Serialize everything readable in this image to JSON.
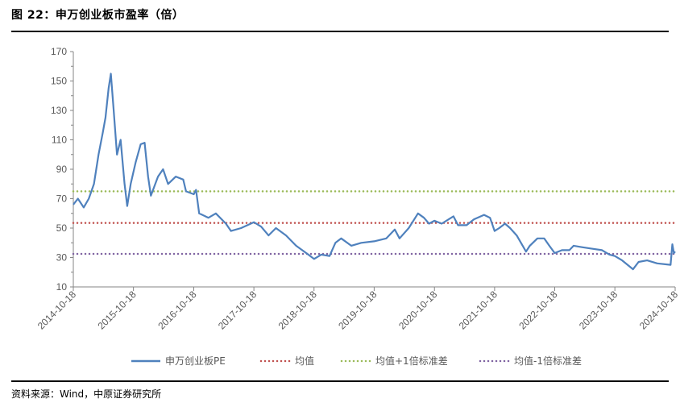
{
  "figure": {
    "title": "图 22：申万创业板市盈率（倍）",
    "source": "资料来源：Wind，中原证券研究所"
  },
  "chart_data": {
    "type": "line",
    "title": "",
    "xlabel": "",
    "ylabel": "",
    "ylim": [
      10,
      170
    ],
    "yticks": [
      10,
      30,
      50,
      70,
      90,
      110,
      130,
      150,
      170
    ],
    "xlim": [
      "2014-10-18",
      "2024-10-18"
    ],
    "xticks": [
      "2014-10-18",
      "2015-10-18",
      "2016-10-18",
      "2017-10-18",
      "2018-10-18",
      "2019-10-18",
      "2020-10-18",
      "2021-10-18",
      "2022-10-18",
      "2023-10-18",
      "2024-10-18"
    ],
    "grid": false,
    "legend": "bottom",
    "series": [
      {
        "name": "申万创业板PE",
        "color": "#4f81bd",
        "style": "solid",
        "points": [
          [
            "2014-10-18",
            66
          ],
          [
            "2014-11-15",
            70
          ],
          [
            "2014-12-20",
            64
          ],
          [
            "2015-01-20",
            70
          ],
          [
            "2015-02-20",
            80
          ],
          [
            "2015-03-20",
            100
          ],
          [
            "2015-04-15",
            115
          ],
          [
            "2015-05-01",
            125
          ],
          [
            "2015-05-20",
            145
          ],
          [
            "2015-06-03",
            155
          ],
          [
            "2015-06-20",
            130
          ],
          [
            "2015-07-10",
            100
          ],
          [
            "2015-08-01",
            110
          ],
          [
            "2015-08-25",
            80
          ],
          [
            "2015-09-10",
            65
          ],
          [
            "2015-10-01",
            80
          ],
          [
            "2015-11-01",
            95
          ],
          [
            "2015-12-01",
            107
          ],
          [
            "2015-12-25",
            108
          ],
          [
            "2016-01-15",
            85
          ],
          [
            "2016-02-01",
            72
          ],
          [
            "2016-03-15",
            85
          ],
          [
            "2016-04-15",
            90
          ],
          [
            "2016-05-15",
            80
          ],
          [
            "2016-07-01",
            85
          ],
          [
            "2016-08-15",
            83
          ],
          [
            "2016-09-01",
            75
          ],
          [
            "2016-10-18",
            73
          ],
          [
            "2016-11-01",
            76
          ],
          [
            "2016-11-20",
            60
          ],
          [
            "2017-01-15",
            57
          ],
          [
            "2017-03-01",
            60
          ],
          [
            "2017-05-01",
            53
          ],
          [
            "2017-06-01",
            48
          ],
          [
            "2017-08-01",
            50
          ],
          [
            "2017-10-18",
            54
          ],
          [
            "2017-12-01",
            51
          ],
          [
            "2018-01-15",
            45
          ],
          [
            "2018-03-01",
            50
          ],
          [
            "2018-05-01",
            45
          ],
          [
            "2018-07-01",
            38
          ],
          [
            "2018-09-01",
            33
          ],
          [
            "2018-10-18",
            29
          ],
          [
            "2018-12-01",
            32
          ],
          [
            "2019-01-20",
            31
          ],
          [
            "2019-02-25",
            40
          ],
          [
            "2019-04-01",
            43
          ],
          [
            "2019-06-01",
            38
          ],
          [
            "2019-08-01",
            40
          ],
          [
            "2019-10-18",
            41
          ],
          [
            "2019-12-31",
            43
          ],
          [
            "2020-02-20",
            49
          ],
          [
            "2020-03-20",
            43
          ],
          [
            "2020-05-15",
            50
          ],
          [
            "2020-07-10",
            60
          ],
          [
            "2020-08-15",
            57
          ],
          [
            "2020-09-15",
            53
          ],
          [
            "2020-10-18",
            55
          ],
          [
            "2020-12-01",
            53
          ],
          [
            "2021-02-10",
            58
          ],
          [
            "2021-03-10",
            52
          ],
          [
            "2021-05-01",
            52
          ],
          [
            "2021-06-15",
            56
          ],
          [
            "2021-08-15",
            59
          ],
          [
            "2021-09-20",
            57
          ],
          [
            "2021-10-18",
            48
          ],
          [
            "2021-11-15",
            50
          ],
          [
            "2021-12-20",
            53
          ],
          [
            "2022-01-20",
            50
          ],
          [
            "2022-03-01",
            45
          ],
          [
            "2022-04-27",
            34
          ],
          [
            "2022-05-20",
            38
          ],
          [
            "2022-07-05",
            43
          ],
          [
            "2022-08-15",
            43
          ],
          [
            "2022-09-15",
            38
          ],
          [
            "2022-10-18",
            33
          ],
          [
            "2022-12-01",
            35
          ],
          [
            "2023-01-15",
            35
          ],
          [
            "2023-02-10",
            38
          ],
          [
            "2023-04-01",
            37
          ],
          [
            "2023-06-01",
            36
          ],
          [
            "2023-08-01",
            35
          ],
          [
            "2023-09-15",
            32
          ],
          [
            "2023-10-18",
            31
          ],
          [
            "2023-12-01",
            28
          ],
          [
            "2024-02-05",
            22
          ],
          [
            "2024-03-10",
            27
          ],
          [
            "2024-05-01",
            28
          ],
          [
            "2024-07-01",
            26
          ],
          [
            "2024-09-20",
            25
          ],
          [
            "2024-10-01",
            39
          ],
          [
            "2024-10-10",
            33
          ],
          [
            "2024-10-18",
            34
          ]
        ]
      },
      {
        "name": "均值",
        "color": "#c0504d",
        "style": "dotted",
        "constant": 53.5
      },
      {
        "name": "均值+1倍标准差",
        "color": "#9bbb59",
        "style": "dotted",
        "constant": 75
      },
      {
        "name": "均值-1倍标准差",
        "color": "#8064a2",
        "style": "dotted",
        "constant": 32.5
      }
    ]
  }
}
